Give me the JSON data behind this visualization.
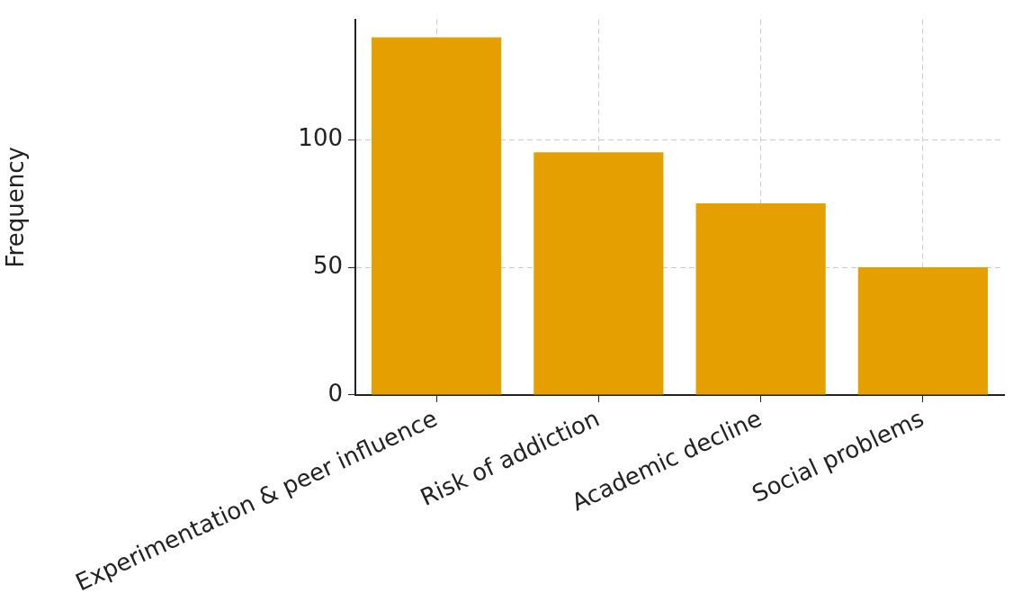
{
  "chart_data": {
    "type": "bar",
    "ylabel": "Frequency",
    "categories": [
      "Experimentation & peer influence",
      "Risk of addiction",
      "Academic decline",
      "Social problems"
    ],
    "values": [
      140,
      95,
      75,
      50
    ],
    "color": "#e5a000",
    "ylim": [
      0,
      147
    ],
    "yticks": [
      0,
      50,
      100
    ],
    "grid": true,
    "legend": false
  }
}
